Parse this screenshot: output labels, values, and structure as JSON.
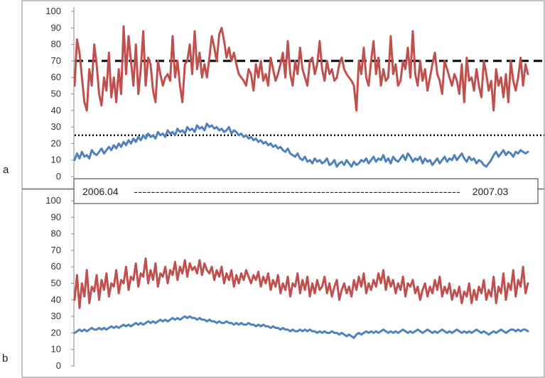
{
  "range_box": {
    "start": "2006.04",
    "end": "2007.03",
    "dashes": "---------------------------------------------------------------------------"
  },
  "colors": {
    "red": "#C0504D",
    "blue": "#4F81BD",
    "reference": "#000000",
    "frame": "#888888"
  },
  "chart_data": [
    {
      "type": "line",
      "panel_label": "a",
      "ylim": [
        0,
        100
      ],
      "y_ticks": [
        "0",
        "10",
        "20",
        "30",
        "40",
        "50",
        "60",
        "70",
        "80",
        "90",
        "100"
      ],
      "x_range": [
        "2006.04",
        "2007.03"
      ],
      "reference_lines": [
        {
          "y": 70,
          "style": "dashed"
        },
        {
          "y": 25,
          "style": "dotted"
        }
      ],
      "series": [
        {
          "color": "#C0504D",
          "values": [
            55,
            83,
            75,
            60,
            45,
            40,
            65,
            55,
            80,
            68,
            50,
            43,
            60,
            52,
            75,
            48,
            60,
            45,
            65,
            50,
            91,
            62,
            85,
            70,
            55,
            80,
            50,
            65,
            88,
            55,
            72,
            68,
            52,
            45,
            70,
            62,
            55,
            60,
            62,
            58,
            85,
            60,
            70,
            55,
            45,
            68,
            70,
            80,
            62,
            88,
            65,
            75,
            60,
            68,
            60,
            72,
            85,
            78,
            70,
            86,
            90,
            82,
            72,
            78,
            70,
            75,
            68,
            62,
            60,
            58,
            55,
            65,
            62,
            52,
            68,
            60,
            70,
            58,
            62,
            55,
            72,
            65,
            58,
            62,
            68,
            75,
            60,
            82,
            62,
            55,
            70,
            62,
            78,
            65,
            60,
            55,
            70,
            72,
            62,
            68,
            82,
            65,
            58,
            70,
            62,
            65,
            58,
            60,
            68,
            72,
            65,
            62,
            60,
            58,
            55,
            40,
            70,
            62,
            78,
            60,
            55,
            70,
            82,
            62,
            72,
            55,
            65,
            58,
            60,
            85,
            62,
            68,
            55,
            58,
            70,
            65,
            78,
            60,
            88,
            62,
            55,
            70,
            58,
            65,
            52,
            60,
            68,
            75,
            62,
            58,
            50,
            70,
            65,
            60,
            55,
            62,
            58,
            50,
            68,
            45,
            72,
            58,
            60,
            52,
            65,
            55,
            48,
            70,
            62,
            52,
            58,
            40,
            65,
            55,
            60,
            48,
            62,
            45,
            70,
            58,
            52,
            60,
            72,
            55,
            68,
            62
          ]
        },
        {
          "color": "#4F81BD",
          "values": [
            10,
            14,
            11,
            15,
            12,
            13,
            11,
            16,
            14,
            13,
            15,
            17,
            14,
            16,
            18,
            16,
            19,
            17,
            20,
            18,
            21,
            19,
            22,
            20,
            23,
            21,
            24,
            22,
            25,
            23,
            26,
            24,
            25,
            23,
            27,
            25,
            26,
            24,
            28,
            26,
            27,
            25,
            29,
            27,
            28,
            26,
            30,
            28,
            29,
            27,
            31,
            29,
            30,
            28,
            32,
            30,
            31,
            29,
            30,
            28,
            29,
            27,
            28,
            30,
            26,
            28,
            27,
            25,
            26,
            24,
            25,
            23,
            24,
            22,
            23,
            21,
            22,
            20,
            21,
            19,
            20,
            18,
            19,
            17,
            18,
            16,
            15,
            17,
            14,
            13,
            12,
            14,
            11,
            10,
            12,
            9,
            10,
            8,
            11,
            9,
            10,
            8,
            9,
            11,
            7,
            8,
            10,
            6,
            8,
            9,
            7,
            10,
            8,
            6,
            9,
            7,
            8,
            10,
            9,
            11,
            8,
            10,
            12,
            9,
            11,
            10,
            13,
            9,
            11,
            8,
            12,
            10,
            9,
            11,
            13,
            10,
            14,
            12,
            9,
            11,
            10,
            12,
            8,
            11,
            9,
            10,
            7,
            9,
            11,
            8,
            10,
            12,
            9,
            11,
            10,
            13,
            10,
            12,
            14,
            11,
            9,
            12,
            10,
            11,
            8,
            10,
            9,
            7,
            6,
            8,
            10,
            13,
            15,
            12,
            14,
            16,
            13,
            15,
            14,
            12,
            15,
            14,
            16,
            15,
            14,
            15
          ]
        }
      ]
    },
    {
      "type": "line",
      "panel_label": "b",
      "ylim": [
        0,
        100
      ],
      "y_ticks": [
        "0",
        "10",
        "20",
        "30",
        "40",
        "50",
        "60",
        "70",
        "80",
        "90",
        "100"
      ],
      "x_range": [
        "2006.04",
        "2007.03"
      ],
      "series": [
        {
          "color": "#C0504D",
          "values": [
            40,
            55,
            35,
            50,
            42,
            58,
            38,
            48,
            45,
            55,
            40,
            52,
            46,
            56,
            42,
            50,
            48,
            58,
            44,
            52,
            50,
            60,
            46,
            54,
            52,
            62,
            48,
            56,
            54,
            65,
            50,
            58,
            52,
            62,
            48,
            56,
            54,
            60,
            50,
            58,
            55,
            63,
            52,
            60,
            56,
            64,
            54,
            62,
            58,
            60,
            56,
            64,
            55,
            62,
            58,
            56,
            60,
            52,
            58,
            54,
            60,
            50,
            56,
            52,
            58,
            48,
            55,
            50,
            56,
            52,
            58,
            54,
            50,
            55,
            52,
            57,
            48,
            54,
            50,
            56,
            46,
            52,
            48,
            55,
            44,
            50,
            46,
            54,
            42,
            50,
            48,
            56,
            44,
            52,
            46,
            54,
            42,
            50,
            44,
            52,
            46,
            48,
            54,
            44,
            50,
            42,
            48,
            52,
            40,
            46,
            50,
            44,
            48,
            42,
            52,
            46,
            54,
            48,
            56,
            44,
            50,
            46,
            52,
            48,
            56,
            50,
            58,
            46,
            54,
            48,
            52,
            44,
            50,
            46,
            54,
            42,
            50,
            48,
            52,
            44,
            48,
            40,
            46,
            50,
            42,
            48,
            44,
            52,
            46,
            54,
            42,
            48,
            44,
            50,
            40,
            46,
            42,
            48,
            38,
            45,
            42,
            50,
            38,
            46,
            40,
            48,
            44,
            52,
            40,
            46,
            42,
            54,
            38,
            48,
            44,
            56,
            40,
            50,
            46,
            58,
            42,
            52,
            48,
            60,
            44,
            50
          ]
        },
        {
          "color": "#4F81BD",
          "values": [
            20,
            21,
            22,
            21,
            22,
            21,
            22,
            23,
            22,
            22,
            23,
            22,
            23,
            22,
            23,
            24,
            23,
            24,
            23,
            24,
            25,
            24,
            25,
            24,
            25,
            26,
            25,
            26,
            25,
            26,
            27,
            26,
            27,
            26,
            27,
            28,
            27,
            28,
            27,
            28,
            29,
            28,
            29,
            28,
            29,
            30,
            29,
            30,
            29,
            29,
            28,
            29,
            28,
            28,
            27,
            28,
            27,
            27,
            26,
            27,
            26,
            26,
            27,
            26,
            26,
            25,
            26,
            25,
            26,
            25,
            25,
            26,
            25,
            25,
            24,
            25,
            24,
            25,
            24,
            24,
            23,
            24,
            23,
            23,
            22,
            23,
            22,
            22,
            21,
            22,
            21,
            21,
            22,
            21,
            22,
            21,
            22,
            21,
            21,
            20,
            21,
            20,
            21,
            20,
            20,
            21,
            20,
            20,
            19,
            20,
            19,
            18,
            19,
            18,
            17,
            19,
            20,
            19,
            20,
            21,
            20,
            21,
            20,
            21,
            20,
            21,
            22,
            21,
            20,
            21,
            20,
            21,
            20,
            21,
            22,
            21,
            20,
            21,
            20,
            21,
            22,
            21,
            20,
            21,
            22,
            21,
            20,
            21,
            20,
            21,
            22,
            21,
            20,
            21,
            20,
            21,
            22,
            21,
            20,
            21,
            20,
            21,
            20,
            21,
            22,
            21,
            20,
            21,
            20,
            19,
            20,
            21,
            20,
            21,
            22,
            21,
            20,
            21,
            22,
            22,
            21,
            22,
            21,
            22,
            22,
            21
          ]
        }
      ]
    }
  ]
}
